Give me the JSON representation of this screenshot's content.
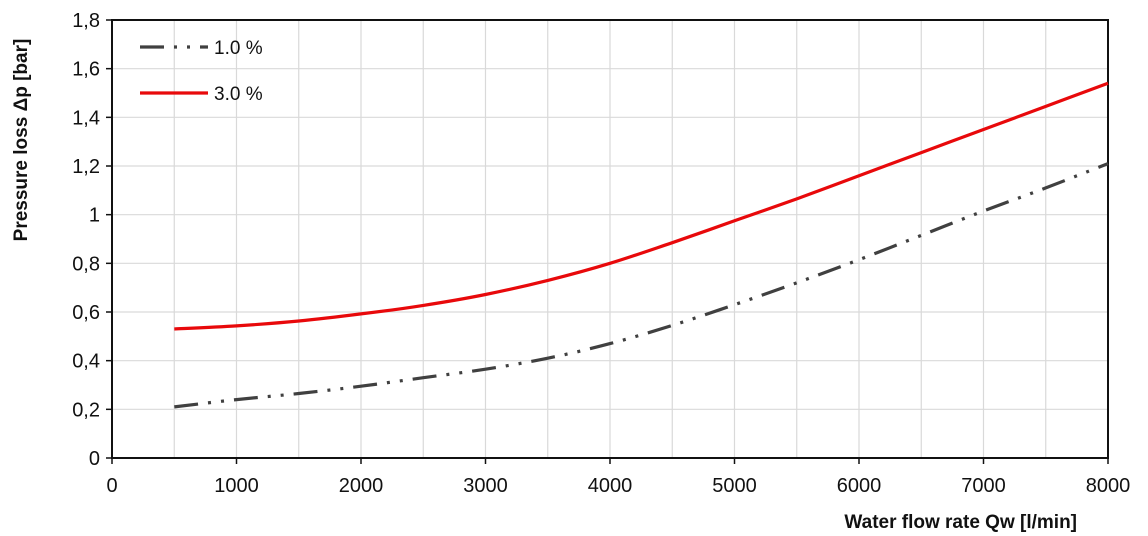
{
  "chart_data": {
    "type": "line",
    "title": "",
    "xlabel": "Water flow rate Qw [l/min]",
    "ylabel": "Pressure loss Δp [bar]",
    "xlim": [
      0,
      8000
    ],
    "ylim": [
      0,
      1.8
    ],
    "x_ticks": [
      "0",
      "1000",
      "2000",
      "3000",
      "4000",
      "5000",
      "6000",
      "7000",
      "8000"
    ],
    "y_ticks": [
      "0",
      "0,2",
      "0,4",
      "0,6",
      "0,8",
      "1",
      "1,2",
      "1,4",
      "1,6",
      "1,8"
    ],
    "grid": true,
    "legend_position": "top-left",
    "series": [
      {
        "name": "1.0 %",
        "color": "#404040",
        "style": "dash-dot-dot",
        "x": [
          500,
          1000,
          1500,
          2000,
          2500,
          3000,
          3500,
          4000,
          4500,
          5000,
          5500,
          6000,
          6500,
          7000,
          7500,
          8000
        ],
        "y": [
          0.21,
          0.24,
          0.265,
          0.295,
          0.33,
          0.365,
          0.41,
          0.47,
          0.545,
          0.63,
          0.72,
          0.815,
          0.915,
          1.015,
          1.11,
          1.21
        ]
      },
      {
        "name": "3.0 %",
        "color": "#e8090b",
        "style": "solid",
        "x": [
          500,
          1000,
          1500,
          2000,
          2500,
          3000,
          3500,
          4000,
          4500,
          5000,
          5500,
          6000,
          6500,
          7000,
          7500,
          8000
        ],
        "y": [
          0.53,
          0.543,
          0.563,
          0.592,
          0.627,
          0.672,
          0.73,
          0.8,
          0.885,
          0.975,
          1.065,
          1.16,
          1.255,
          1.35,
          1.445,
          1.54
        ]
      }
    ]
  }
}
